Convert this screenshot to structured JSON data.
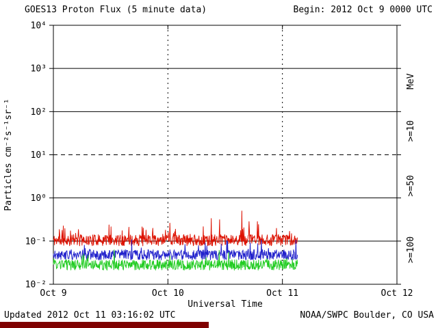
{
  "header": {
    "title": "GOES13 Proton Flux (5 minute data)",
    "begin": "Begin: 2012 Oct 9 0000 UTC"
  },
  "footer": {
    "updated": "Updated 2012 Oct 11 03:16:02 UTC",
    "credit": "NOAA/SWPC Boulder, CO USA",
    "bar_color": "#7f0000"
  },
  "chart_data": {
    "type": "line",
    "title": "GOES13 Proton Flux (5 minute data)",
    "xlabel": "Universal Time",
    "ylabel": "Particles cm⁻²s⁻¹sr⁻¹",
    "x_tick_labels": [
      "Oct 9",
      "Oct 10",
      "Oct 11",
      "Oct 12"
    ],
    "x_tick_hours": [
      0,
      24,
      48,
      72
    ],
    "x_range_hours": [
      0,
      72
    ],
    "y_scale": "log",
    "y_log_range": [
      -2,
      4
    ],
    "y_tick_labels": [
      "10⁴",
      "10³",
      "10²",
      "10¹",
      "10⁰",
      "10⁻¹",
      "10⁻²"
    ],
    "y_tick_exponents": [
      4,
      3,
      2,
      1,
      0,
      -1,
      -2
    ],
    "grid": {
      "solid_decades": [
        3,
        2,
        0,
        -1
      ],
      "dashed_decades": [
        1
      ],
      "dotted_day_lines_hours": [
        24,
        48
      ]
    },
    "right_axis_labels": [
      {
        "text": "MeV",
        "color": "#000000"
      },
      {
        "text": ">=10",
        "color": "#dd1100"
      },
      {
        "text": ">=50",
        "color": "#2222cc"
      },
      {
        "text": ">=100",
        "color": "#22cc22"
      }
    ],
    "sample_interval_minutes": 5,
    "data_end_hour": 51.25,
    "series": [
      {
        "name": ">=10 MeV",
        "color": "#dd1100",
        "baseline_flux": 0.105,
        "noise_dex": 0.13,
        "spike_prob": 0.09,
        "spike_dex": 0.42,
        "min_observed": 0.06,
        "max_observed": 0.5,
        "peak": {
          "hour": 39.5,
          "flux": 0.5
        },
        "seed": 11
      },
      {
        "name": ">=50 MeV",
        "color": "#2222cc",
        "baseline_flux": 0.048,
        "noise_dex": 0.12,
        "spike_prob": 0.05,
        "spike_dex": 0.3,
        "min_observed": 0.03,
        "max_observed": 0.12,
        "seed": 22
      },
      {
        "name": ">=100 MeV",
        "color": "#22cc22",
        "baseline_flux": 0.028,
        "noise_dex": 0.12,
        "spike_prob": 0.04,
        "spike_dex": 0.25,
        "min_observed": 0.018,
        "max_observed": 0.06,
        "seed": 33
      }
    ]
  }
}
